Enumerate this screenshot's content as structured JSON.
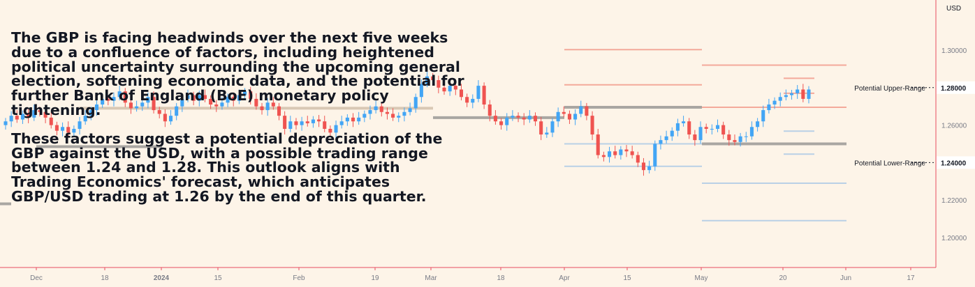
{
  "chart_data": {
    "type": "candlestick",
    "currency": "USD",
    "ylim": [
      1.19,
      1.31
    ],
    "y_ticks": [
      "1.20000",
      "1.22000",
      "1.24000",
      "1.26000",
      "1.28000",
      "1.30000"
    ],
    "x_ticks": [
      "Dec",
      "18",
      "2024",
      "15",
      "Feb",
      "19",
      "Mar",
      "18",
      "Apr",
      "15",
      "May",
      "20",
      "Jun",
      "17"
    ],
    "price_labels": [
      {
        "value": 1.28,
        "text": "1.28000",
        "annotation": "Potential Upper-Range"
      },
      {
        "value": 1.24,
        "text": "1.24000",
        "annotation": "Potential Lower-Range"
      }
    ],
    "colors": {
      "up": "#42a5f5",
      "down": "#ef5350",
      "background": "#fdf4e8",
      "axis_text": "#787b86",
      "separator": "#e84c61"
    },
    "ohlc_close_approx": [
      1.262,
      1.265,
      1.263,
      1.266,
      1.264,
      1.268,
      1.267,
      1.264,
      1.26,
      1.257,
      1.259,
      1.256,
      1.258,
      1.262,
      1.265,
      1.268,
      1.271,
      1.274,
      1.273,
      1.275,
      1.278,
      1.272,
      1.269,
      1.27,
      1.272,
      1.275,
      1.268,
      1.266,
      1.262,
      1.265,
      1.27,
      1.274,
      1.276,
      1.273,
      1.276,
      1.274,
      1.271,
      1.27,
      1.272,
      1.275,
      1.273,
      1.276,
      1.278,
      1.274,
      1.27,
      1.268,
      1.272,
      1.27,
      1.265,
      1.258,
      1.262,
      1.26,
      1.262,
      1.261,
      1.263,
      1.262,
      1.258,
      1.256,
      1.26,
      1.262,
      1.264,
      1.262,
      1.264,
      1.266,
      1.268,
      1.27,
      1.267,
      1.266,
      1.264,
      1.265,
      1.267,
      1.269,
      1.275,
      1.282,
      1.286,
      1.284,
      1.28,
      1.278,
      1.281,
      1.279,
      1.275,
      1.272,
      1.274,
      1.281,
      1.271,
      1.265,
      1.262,
      1.26,
      1.264,
      1.265,
      1.264,
      1.263,
      1.265,
      1.262,
      1.255,
      1.256,
      1.262,
      1.267,
      1.266,
      1.263,
      1.266,
      1.27,
      1.265,
      1.255,
      1.244,
      1.243,
      1.246,
      1.244,
      1.247,
      1.246,
      1.244,
      1.24,
      1.236,
      1.238,
      1.25,
      1.252,
      1.254,
      1.257,
      1.261,
      1.262,
      1.255,
      1.252,
      1.259,
      1.258,
      1.258,
      1.26,
      1.255,
      1.252,
      1.251,
      1.254,
      1.254,
      1.259,
      1.262,
      1.268,
      1.271,
      1.273,
      1.275,
      1.276,
      1.277,
      1.279,
      1.274,
      1.279
    ]
  },
  "commentary": {
    "paragraph1": "The GBP is facing headwinds over the next five weeks due to a confluence of factors, including heightened political uncertainty surrounding the upcoming general election, softening economic data, and the potential for further Bank of England (BoE) monetary policy tightening.",
    "paragraph2": "These factors suggest a potential depreciation of the GBP against the USD, with a possible trading range between 1.24 and 1.28. This outlook aligns with Trading Economics' forecast, which anticipates GBP/USD trading at 1.26 by the end of this quarter."
  }
}
